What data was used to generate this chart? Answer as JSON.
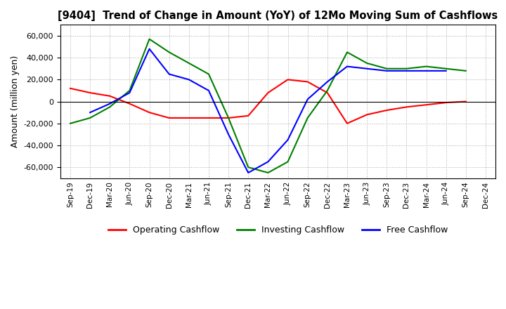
{
  "title": "[9404]  Trend of Change in Amount (YoY) of 12Mo Moving Sum of Cashflows",
  "ylabel": "Amount (million yen)",
  "x_labels": [
    "Sep-19",
    "Dec-19",
    "Mar-20",
    "Jun-20",
    "Sep-20",
    "Dec-20",
    "Mar-21",
    "Jun-21",
    "Sep-21",
    "Dec-21",
    "Mar-22",
    "Jun-22",
    "Sep-22",
    "Dec-22",
    "Mar-23",
    "Jun-23",
    "Sep-23",
    "Dec-23",
    "Mar-24",
    "Jun-24",
    "Sep-24",
    "Dec-24"
  ],
  "operating": [
    12000,
    8000,
    5000,
    -2000,
    -10000,
    -15000,
    -15000,
    -15000,
    -15000,
    -13000,
    8000,
    20000,
    18000,
    8000,
    -20000,
    -12000,
    -8000,
    -5000,
    -3000,
    -1000,
    0,
    null
  ],
  "investing": [
    -20000,
    -15000,
    -5000,
    10000,
    57000,
    45000,
    35000,
    25000,
    -15000,
    -60000,
    -65000,
    -55000,
    -15000,
    10000,
    45000,
    35000,
    30000,
    30000,
    32000,
    30000,
    28000,
    null
  ],
  "free": [
    null,
    -10000,
    -2000,
    8000,
    48000,
    25000,
    20000,
    10000,
    -30000,
    -65000,
    -55000,
    -35000,
    2000,
    18000,
    32000,
    30000,
    28000,
    28000,
    28000,
    28000,
    null,
    null
  ],
  "operating_color": "#ff0000",
  "investing_color": "#008000",
  "free_color": "#0000ff",
  "ylim": [
    -70000,
    70000
  ],
  "yticks": [
    -60000,
    -40000,
    -20000,
    0,
    20000,
    40000,
    60000
  ]
}
